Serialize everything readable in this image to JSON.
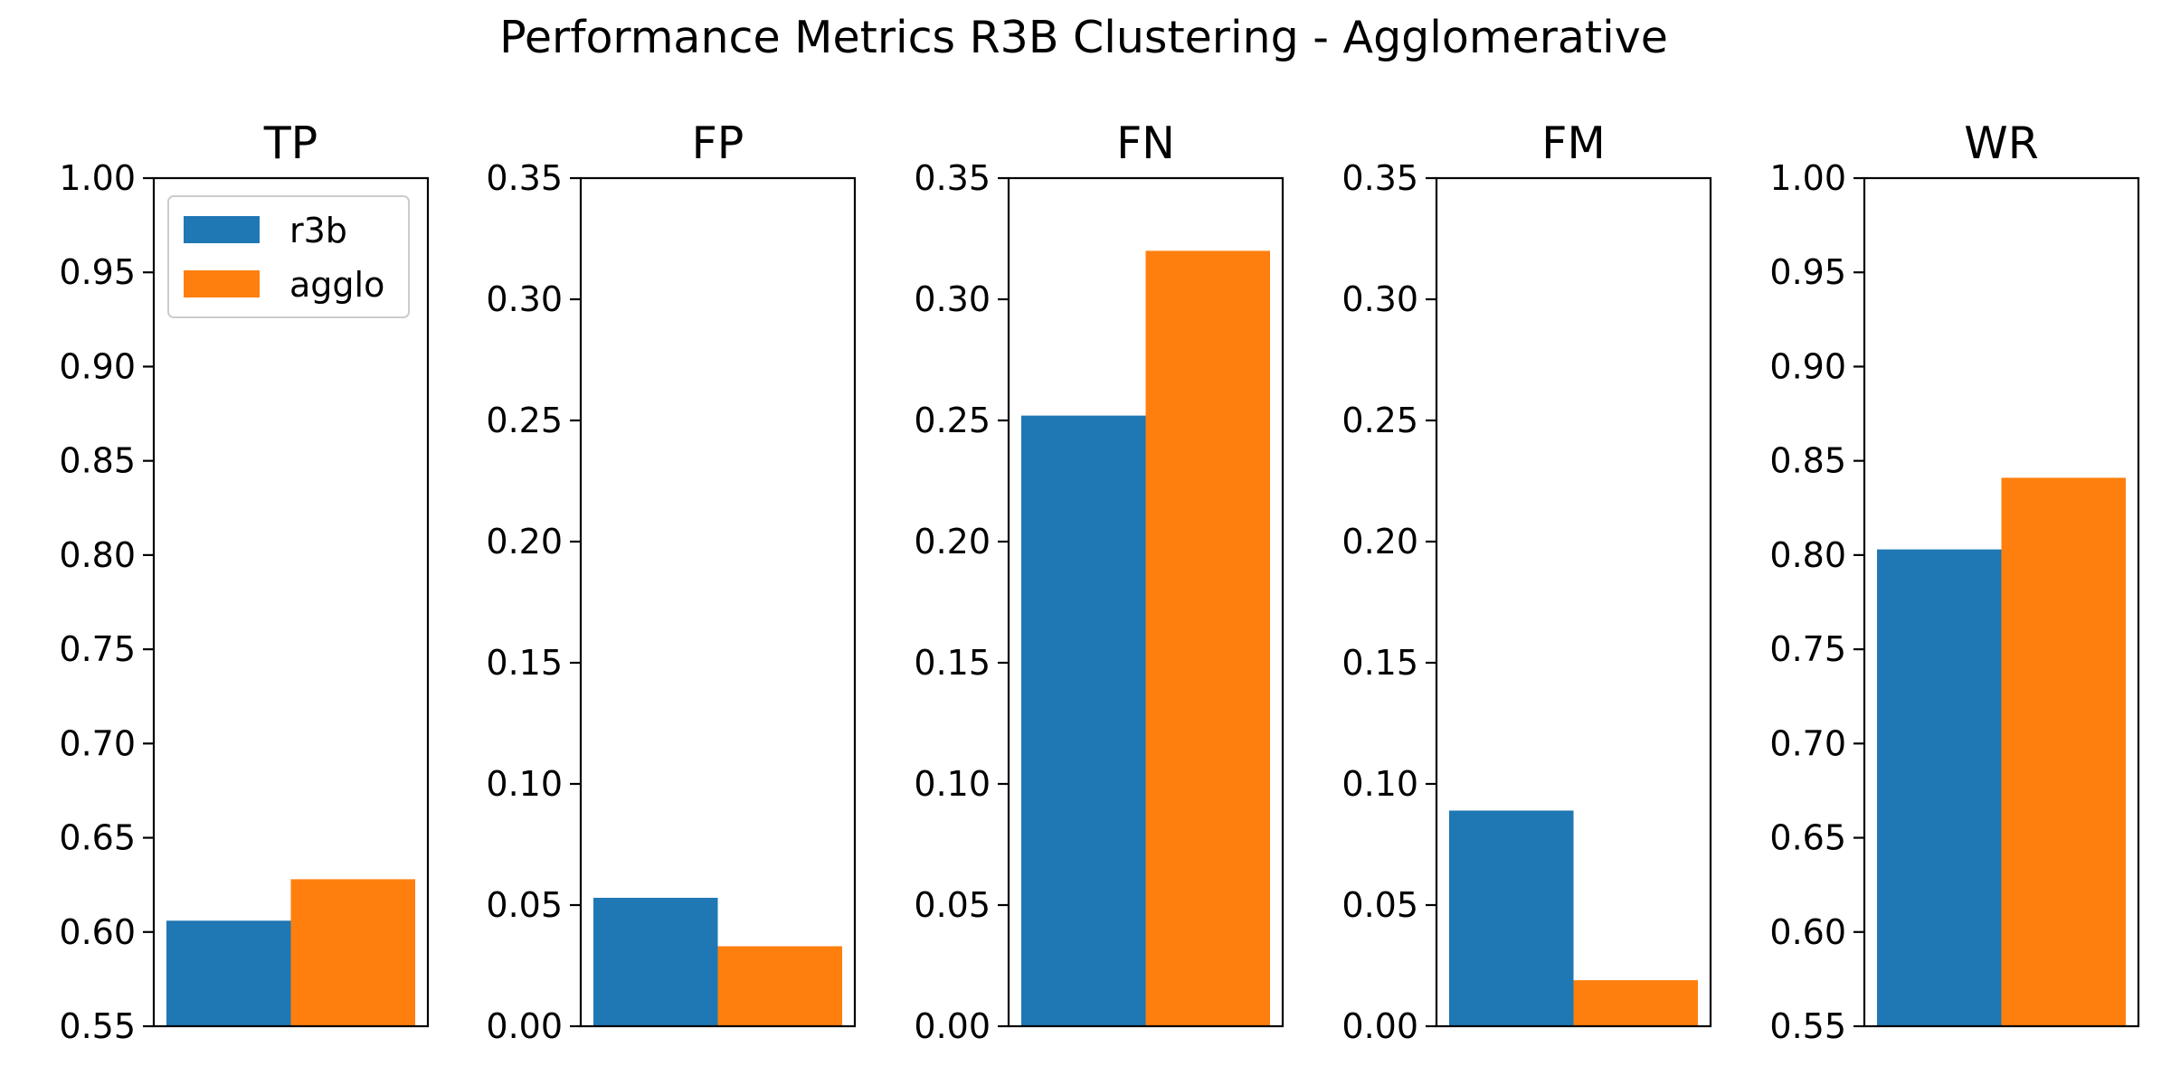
{
  "chart_data": {
    "type": "bar",
    "title": "Performance Metrics R3B Clustering - Agglomerative",
    "series_names": [
      "r3b",
      "agglo"
    ],
    "colors": {
      "r3b": "#1f77b4",
      "agglo": "#ff7f0e"
    },
    "legend": {
      "placement": "top-left",
      "panel": "TP",
      "entries": [
        "r3b",
        "agglo"
      ]
    },
    "grid": false,
    "panels": [
      {
        "title": "TP",
        "ylim": [
          0.55,
          1.0
        ],
        "yticks": [
          "0.55",
          "0.60",
          "0.65",
          "0.70",
          "0.75",
          "0.80",
          "0.85",
          "0.90",
          "0.95",
          "1.00"
        ],
        "values": {
          "r3b": 0.606,
          "agglo": 0.628
        }
      },
      {
        "title": "FP",
        "ylim": [
          0.0,
          0.35
        ],
        "yticks": [
          "0.00",
          "0.05",
          "0.10",
          "0.15",
          "0.20",
          "0.25",
          "0.30",
          "0.35"
        ],
        "values": {
          "r3b": 0.053,
          "agglo": 0.033
        }
      },
      {
        "title": "FN",
        "ylim": [
          0.0,
          0.35
        ],
        "yticks": [
          "0.00",
          "0.05",
          "0.10",
          "0.15",
          "0.20",
          "0.25",
          "0.30",
          "0.35"
        ],
        "values": {
          "r3b": 0.252,
          "agglo": 0.32
        }
      },
      {
        "title": "FM",
        "ylim": [
          0.0,
          0.35
        ],
        "yticks": [
          "0.00",
          "0.05",
          "0.10",
          "0.15",
          "0.20",
          "0.25",
          "0.30",
          "0.35"
        ],
        "values": {
          "r3b": 0.089,
          "agglo": 0.019
        }
      },
      {
        "title": "WR",
        "ylim": [
          0.55,
          1.0
        ],
        "yticks": [
          "0.55",
          "0.60",
          "0.65",
          "0.70",
          "0.75",
          "0.80",
          "0.85",
          "0.90",
          "0.95",
          "1.00"
        ],
        "values": {
          "r3b": 0.803,
          "agglo": 0.841
        }
      }
    ]
  }
}
